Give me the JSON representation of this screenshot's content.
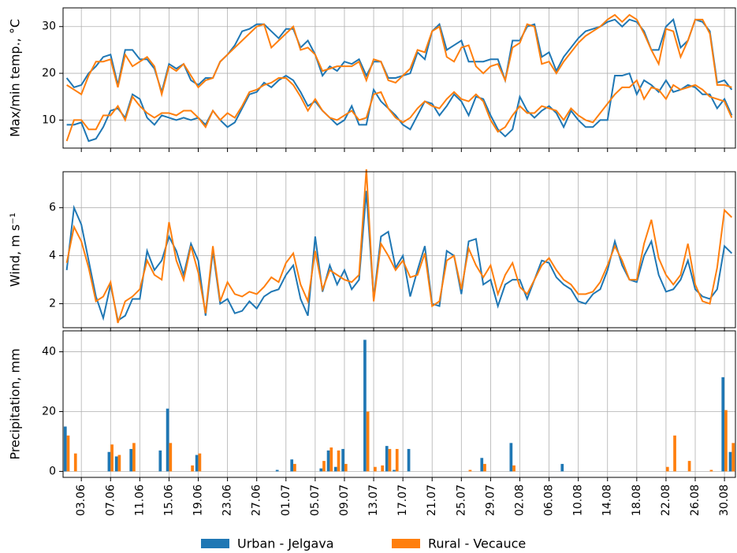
{
  "chart_data": [
    {
      "type": "line",
      "ylabel": "Max/min temp., °C",
      "ylim": [
        4,
        34
      ],
      "yticks": [
        10,
        20,
        30
      ],
      "grid": true,
      "series": [
        {
          "color": "#1f77b4",
          "values": [
            19,
            17,
            17.5,
            20,
            21.5,
            23.5,
            24,
            17.5,
            25,
            25,
            23,
            23,
            21,
            16,
            22,
            21,
            22,
            18.5,
            17.5,
            19,
            19,
            22.5,
            24,
            26,
            29,
            29.5,
            30.5,
            30.5,
            29,
            27.5,
            29.5,
            29.5,
            25.5,
            27,
            24,
            19.5,
            21.5,
            20.5,
            22.5,
            22,
            23,
            19.5,
            22.5,
            22.5,
            19,
            19,
            19.5,
            20,
            24.5,
            23,
            29,
            30.5,
            25,
            26,
            27,
            22.5,
            22.5,
            22.5,
            23,
            23,
            18.5,
            27,
            27,
            30,
            30.5,
            23.5,
            24.5,
            20.5,
            23.5,
            25.5,
            27.5,
            29,
            29.5,
            30,
            31,
            31.5,
            30,
            31.5,
            31,
            29,
            25,
            25,
            30,
            31.5,
            25.5,
            27,
            31.5,
            31,
            29,
            18,
            18.5,
            16.5
          ]
        },
        {
          "color": "#ff7f0e",
          "values": [
            17.5,
            16.5,
            15.5,
            19.5,
            22.5,
            22.5,
            23,
            17,
            24,
            21.5,
            22.5,
            23.5,
            21.5,
            15.5,
            21.5,
            20.5,
            22,
            19.5,
            17,
            18.5,
            19,
            22.5,
            24,
            25.5,
            27,
            28.5,
            30,
            30.5,
            25.5,
            27,
            28.5,
            30,
            25,
            25.5,
            24,
            20.5,
            21,
            21.5,
            21.5,
            21.5,
            22.5,
            18.5,
            23,
            22.5,
            18.5,
            18,
            19.5,
            21,
            25,
            24.5,
            29,
            30,
            23.5,
            22.5,
            25.5,
            26,
            21.5,
            20,
            21.5,
            22,
            18.5,
            25.5,
            26.5,
            30.5,
            30,
            22,
            22.5,
            20,
            22.5,
            24.5,
            26.5,
            28,
            29,
            30,
            31.5,
            32.5,
            31,
            32.5,
            31.5,
            28.5,
            25,
            22,
            29.5,
            29,
            23.5,
            27,
            31.5,
            31.5,
            28.5,
            17.5,
            17.5,
            17
          ]
        },
        {
          "color": "#1f77b4",
          "values": [
            9,
            9,
            9.5,
            5.5,
            6,
            8.5,
            12,
            12.5,
            10.5,
            15.5,
            14.5,
            10.5,
            9,
            11,
            10.5,
            10,
            10.5,
            10,
            10.5,
            9,
            12,
            10,
            8.5,
            9.5,
            12.5,
            15.5,
            16,
            18,
            17,
            18.5,
            19.5,
            18.5,
            16,
            13,
            14,
            12,
            10.5,
            9,
            10,
            13,
            9,
            9,
            16.5,
            14,
            12.5,
            11,
            9,
            8,
            11,
            14,
            13.5,
            11,
            13,
            15.5,
            14,
            11,
            15,
            14.5,
            11,
            8,
            6.5,
            8,
            15,
            12,
            10.5,
            12,
            13,
            11.5,
            8.5,
            12,
            10,
            8.5,
            8.5,
            10,
            10,
            19.5,
            19.5,
            20,
            15.5,
            18.5,
            17.5,
            16,
            18.5,
            16,
            16.5,
            17.5,
            17,
            15.5,
            15.5,
            12.5,
            14.5,
            11
          ]
        },
        {
          "color": "#ff7f0e",
          "values": [
            5.5,
            10,
            10,
            8,
            8,
            11,
            11,
            13,
            10,
            15,
            13,
            11.5,
            10.5,
            11.5,
            11.5,
            11,
            12,
            12,
            10.5,
            8.5,
            12,
            10,
            11.5,
            10.5,
            13,
            16,
            16.5,
            17.5,
            18,
            19,
            19,
            17.5,
            15,
            12,
            14.5,
            12,
            10.5,
            10,
            11,
            12,
            10,
            10.5,
            15.5,
            16,
            12.5,
            10.5,
            9.5,
            10.5,
            12.5,
            14,
            13,
            12.5,
            14.5,
            16,
            14.5,
            14,
            15.5,
            14,
            10,
            7.5,
            8.5,
            11,
            13,
            11.5,
            11.5,
            13,
            12.5,
            12,
            10,
            12.5,
            11,
            10,
            9.5,
            11.5,
            13.5,
            15.5,
            17,
            17,
            18.5,
            14.5,
            17,
            16.5,
            14.5,
            17.5,
            16.5,
            17,
            17.5,
            16.5,
            15,
            14.5,
            14,
            10.5
          ]
        }
      ]
    },
    {
      "type": "line",
      "ylabel": "Wind, m s⁻¹",
      "ylim": [
        1,
        7.5
      ],
      "yticks": [
        2,
        4,
        6
      ],
      "grid": true,
      "series": [
        {
          "color": "#1f77b4",
          "values": [
            3.4,
            6.0,
            5.3,
            3.8,
            2.3,
            1.4,
            2.8,
            1.3,
            1.5,
            2.2,
            2.2,
            4.2,
            3.4,
            3.8,
            4.8,
            4.2,
            3.2,
            4.5,
            3.8,
            1.5,
            4.2,
            2.0,
            2.2,
            1.6,
            1.7,
            2.1,
            1.8,
            2.3,
            2.5,
            2.6,
            3.2,
            3.6,
            2.2,
            1.5,
            4.8,
            2.5,
            3.6,
            2.8,
            3.4,
            2.6,
            3.0,
            6.7,
            2.2,
            4.8,
            5.0,
            3.5,
            4.0,
            2.3,
            3.4,
            4.4,
            2.0,
            1.9,
            4.2,
            4.0,
            2.4,
            4.6,
            4.7,
            2.8,
            3.0,
            1.9,
            2.8,
            3.0,
            3.0,
            2.2,
            3.0,
            3.8,
            3.7,
            3.1,
            2.8,
            2.6,
            2.1,
            2.0,
            2.4,
            2.6,
            3.4,
            4.6,
            3.6,
            3.0,
            2.9,
            4.0,
            4.6,
            3.2,
            2.5,
            2.6,
            3.0,
            3.8,
            2.6,
            2.3,
            2.2,
            2.6,
            4.4,
            4.1
          ]
        },
        {
          "color": "#ff7f0e",
          "values": [
            3.7,
            5.2,
            4.6,
            3.5,
            2.1,
            2.3,
            2.9,
            1.2,
            2.1,
            2.3,
            2.6,
            3.8,
            3.2,
            3.0,
            5.4,
            3.8,
            3.0,
            4.4,
            3.3,
            1.6,
            4.4,
            2.1,
            2.9,
            2.4,
            2.3,
            2.5,
            2.4,
            2.7,
            3.1,
            2.9,
            3.7,
            4.1,
            2.8,
            2.1,
            4.2,
            2.6,
            3.4,
            3.2,
            3.0,
            2.9,
            3.2,
            7.6,
            2.1,
            4.5,
            4.0,
            3.4,
            3.8,
            3.1,
            3.2,
            4.1,
            1.9,
            2.1,
            3.8,
            4.0,
            2.6,
            4.3,
            3.6,
            3.1,
            3.6,
            2.4,
            3.2,
            3.7,
            2.7,
            2.4,
            3.0,
            3.6,
            3.9,
            3.4,
            3.0,
            2.8,
            2.4,
            2.4,
            2.5,
            2.9,
            3.6,
            4.4,
            3.8,
            3.0,
            3.0,
            4.5,
            5.5,
            3.9,
            3.2,
            2.8,
            3.2,
            4.5,
            2.8,
            2.1,
            2.0,
            3.5,
            5.9,
            5.6
          ]
        }
      ]
    },
    {
      "type": "bar",
      "ylabel": "Precipitation, mm",
      "ylim": [
        -2,
        47
      ],
      "yticks": [
        0,
        20,
        40
      ],
      "grid": true,
      "legend": "bottom",
      "categories": [
        null,
        null,
        "03.06",
        null,
        null,
        null,
        "07.06",
        null,
        null,
        null,
        "11.06",
        null,
        null,
        null,
        "15.06",
        null,
        null,
        null,
        "19.06",
        null,
        null,
        null,
        "23.06",
        null,
        null,
        null,
        "27.06",
        null,
        null,
        null,
        "01.07",
        null,
        null,
        null,
        "05.07",
        null,
        null,
        null,
        "09.07",
        null,
        null,
        null,
        "13.07",
        null,
        null,
        null,
        "17.07",
        null,
        null,
        null,
        "21.07",
        null,
        null,
        null,
        "25.07",
        null,
        null,
        null,
        "29.07",
        null,
        null,
        null,
        "02.08",
        null,
        null,
        null,
        "06.08",
        null,
        null,
        null,
        "10.08",
        null,
        null,
        null,
        "14.08",
        null,
        null,
        null,
        "18.08",
        null,
        null,
        null,
        "22.08",
        null,
        null,
        null,
        "26.08",
        null,
        null,
        null,
        "30.08",
        null
      ],
      "series": [
        {
          "name": "Urban - Jelgava",
          "color": "#1f77b4",
          "values": [
            15,
            0,
            0,
            0,
            0,
            0,
            6.5,
            5,
            0,
            7.5,
            0,
            0,
            0,
            7,
            21,
            0,
            0,
            0,
            5.5,
            0,
            0,
            0,
            0,
            0,
            0,
            0,
            0,
            0,
            0,
            0.5,
            0,
            4,
            0,
            0,
            0,
            1,
            7,
            1.5,
            7.5,
            0,
            0,
            44,
            0,
            0,
            8.5,
            0.5,
            0,
            7.5,
            0,
            0,
            0,
            0,
            0,
            0,
            0,
            0,
            0,
            4.5,
            0,
            0,
            0,
            9.5,
            0,
            0,
            0,
            0,
            0,
            0,
            2.5,
            0,
            0,
            0,
            0,
            0,
            0,
            0,
            0,
            0,
            0,
            0,
            0,
            0,
            0,
            0,
            0,
            0,
            0,
            0,
            0,
            0,
            31.5,
            6.5
          ]
        },
        {
          "name": "Rural - Vecauce",
          "color": "#ff7f0e",
          "values": [
            12,
            6,
            0,
            0,
            0,
            0,
            9,
            5.5,
            0,
            9.5,
            0,
            0,
            0,
            0,
            9.5,
            0,
            0,
            2,
            6,
            0,
            0,
            0,
            0,
            0,
            0,
            0,
            0,
            0,
            0,
            0,
            0,
            2.5,
            0,
            0,
            0,
            3.5,
            8,
            7,
            2.5,
            0,
            0,
            20,
            1.5,
            2,
            7.5,
            7.5,
            0,
            0,
            0,
            0,
            0,
            0,
            0,
            0,
            0,
            0.5,
            0,
            2.5,
            0,
            0,
            0,
            2,
            0,
            0,
            0,
            0,
            0,
            0,
            0,
            0,
            0,
            0,
            0,
            0,
            0,
            0,
            0,
            0,
            0,
            0,
            0,
            0,
            1.5,
            12,
            0,
            3.5,
            0,
            0,
            0.5,
            0,
            20.5,
            9.5
          ]
        }
      ]
    }
  ]
}
